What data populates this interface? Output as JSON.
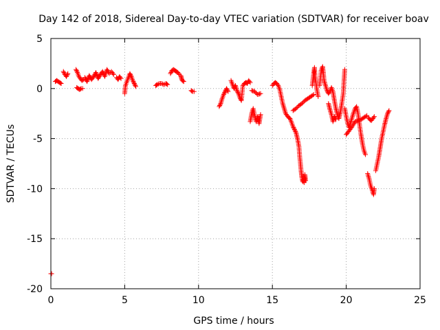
{
  "chart_data": {
    "type": "scatter",
    "title": "Day 142 of 2018, Sidereal Day-to-day VTEC variation (SDTVAR) for receiver boav",
    "xlabel": "GPS time / hours",
    "ylabel": "SDTVAR / TECUs",
    "xlim": [
      0,
      25
    ],
    "ylim": [
      -20,
      5
    ],
    "x_ticks": [
      0,
      5,
      10,
      15,
      20,
      25
    ],
    "y_ticks": [
      -20,
      -15,
      -10,
      -5,
      0,
      5
    ],
    "grid": true,
    "marker": "+",
    "color": "#ff0000",
    "series": [
      {
        "name": "SDTVAR",
        "segments": [
          [
            [
              0.0,
              -18.5
            ],
            [
              0.05,
              -18.5
            ]
          ],
          [
            [
              0.3,
              0.7
            ],
            [
              0.4,
              0.8
            ],
            [
              0.5,
              0.7
            ],
            [
              0.6,
              0.6
            ],
            [
              0.7,
              0.5
            ]
          ],
          [
            [
              0.85,
              1.7
            ],
            [
              0.95,
              1.4
            ],
            [
              1.05,
              1.2
            ],
            [
              1.15,
              1.5
            ]
          ],
          [
            [
              1.7,
              1.9
            ],
            [
              1.8,
              1.6
            ],
            [
              1.9,
              1.2
            ],
            [
              2.0,
              1.0
            ],
            [
              2.1,
              0.8
            ],
            [
              2.2,
              0.9
            ]
          ],
          [
            [
              1.75,
              0.1
            ],
            [
              1.85,
              0.0
            ],
            [
              1.95,
              -0.1
            ],
            [
              2.05,
              0.0
            ],
            [
              2.15,
              0.0
            ]
          ],
          [
            [
              2.3,
              1.1
            ],
            [
              2.45,
              0.7
            ],
            [
              2.6,
              1.3
            ],
            [
              2.75,
              0.9
            ],
            [
              2.9,
              1.2
            ],
            [
              3.05,
              1.6
            ],
            [
              3.2,
              1.0
            ],
            [
              3.35,
              1.4
            ],
            [
              3.5,
              1.7
            ],
            [
              3.65,
              1.2
            ],
            [
              3.8,
              1.9
            ],
            [
              3.95,
              1.5
            ],
            [
              4.1,
              1.7
            ],
            [
              4.25,
              1.4
            ]
          ],
          [
            [
              4.45,
              1.1
            ],
            [
              4.55,
              0.9
            ],
            [
              4.65,
              1.2
            ],
            [
              4.75,
              1.0
            ]
          ],
          [
            [
              5.0,
              -0.5
            ],
            [
              5.05,
              0.3
            ],
            [
              5.15,
              0.7
            ],
            [
              5.25,
              1.1
            ],
            [
              5.35,
              1.5
            ],
            [
              5.45,
              1.2
            ],
            [
              5.55,
              0.8
            ],
            [
              5.65,
              0.5
            ],
            [
              5.75,
              0.2
            ]
          ],
          [
            [
              7.1,
              0.3
            ],
            [
              7.2,
              0.4
            ],
            [
              7.35,
              0.5
            ],
            [
              7.5,
              0.5
            ],
            [
              7.65,
              0.4
            ],
            [
              7.8,
              0.5
            ],
            [
              7.9,
              0.4
            ]
          ],
          [
            [
              8.1,
              1.5
            ],
            [
              8.2,
              1.8
            ],
            [
              8.3,
              1.9
            ],
            [
              8.4,
              1.8
            ],
            [
              8.5,
              1.7
            ],
            [
              8.6,
              1.6
            ],
            [
              8.7,
              1.4
            ]
          ],
          [
            [
              8.8,
              1.3
            ],
            [
              8.85,
              1.0
            ],
            [
              8.9,
              0.8
            ],
            [
              9.0,
              0.7
            ]
          ],
          [
            [
              9.5,
              -0.2
            ],
            [
              9.6,
              -0.3
            ],
            [
              9.7,
              -0.3
            ]
          ],
          [
            [
              11.4,
              -1.8
            ],
            [
              11.5,
              -1.5
            ],
            [
              11.6,
              -1.0
            ],
            [
              11.7,
              -0.6
            ],
            [
              11.8,
              -0.3
            ],
            [
              11.9,
              0.0
            ],
            [
              12.0,
              -0.3
            ]
          ],
          [
            [
              12.2,
              0.8
            ],
            [
              12.3,
              0.4
            ],
            [
              12.4,
              0.0
            ],
            [
              12.5,
              0.3
            ],
            [
              12.6,
              -0.2
            ],
            [
              12.7,
              -0.5
            ],
            [
              12.8,
              -0.9
            ],
            [
              12.9,
              -1.2
            ],
            [
              13.0,
              0.3
            ],
            [
              13.1,
              0.5
            ],
            [
              13.2,
              0.6
            ],
            [
              13.3,
              0.5
            ],
            [
              13.4,
              0.8
            ],
            [
              13.5,
              0.6
            ]
          ],
          [
            [
              13.5,
              -3.3
            ],
            [
              13.6,
              -2.5
            ],
            [
              13.7,
              -2.0
            ],
            [
              13.8,
              -2.7
            ],
            [
              13.9,
              -3.3
            ],
            [
              14.0,
              -2.8
            ],
            [
              14.1,
              -3.5
            ],
            [
              14.2,
              -2.6
            ]
          ],
          [
            [
              13.6,
              -0.2
            ],
            [
              13.8,
              -0.3
            ],
            [
              14.0,
              -0.6
            ],
            [
              14.2,
              -0.5
            ]
          ],
          [
            [
              15.0,
              0.3
            ],
            [
              15.1,
              0.5
            ],
            [
              15.2,
              0.6
            ],
            [
              15.3,
              0.5
            ],
            [
              15.4,
              0.3
            ],
            [
              15.5,
              -0.1
            ],
            [
              15.6,
              -0.8
            ],
            [
              15.7,
              -1.5
            ],
            [
              15.8,
              -2.0
            ],
            [
              15.9,
              -2.5
            ],
            [
              16.0,
              -2.7
            ],
            [
              16.1,
              -2.9
            ],
            [
              16.2,
              -3.0
            ],
            [
              16.3,
              -3.4
            ],
            [
              16.4,
              -3.8
            ],
            [
              16.5,
              -4.1
            ],
            [
              16.6,
              -4.4
            ],
            [
              16.7,
              -5.0
            ],
            [
              16.8,
              -5.8
            ],
            [
              16.85,
              -6.8
            ],
            [
              16.9,
              -7.5
            ],
            [
              16.95,
              -8.3
            ],
            [
              17.0,
              -8.9
            ],
            [
              17.05,
              -9.3
            ],
            [
              17.1,
              -9.1
            ],
            [
              17.15,
              -9.4
            ],
            [
              17.2,
              -8.6
            ],
            [
              17.25,
              -9.2
            ]
          ],
          [
            [
              16.4,
              -2.2
            ],
            [
              16.6,
              -2.0
            ],
            [
              16.8,
              -1.7
            ],
            [
              17.0,
              -1.5
            ],
            [
              17.2,
              -1.2
            ],
            [
              17.4,
              -1.0
            ],
            [
              17.6,
              -0.8
            ],
            [
              17.8,
              -0.6
            ]
          ],
          [
            [
              17.7,
              0.3
            ],
            [
              17.8,
              1.6
            ],
            [
              17.85,
              2.1
            ],
            [
              17.9,
              1.1
            ],
            [
              18.0,
              0.0
            ],
            [
              18.1,
              -0.8
            ]
          ],
          [
            [
              18.2,
              0.3
            ],
            [
              18.3,
              1.8
            ],
            [
              18.4,
              2.2
            ],
            [
              18.45,
              1.6
            ],
            [
              18.5,
              0.8
            ],
            [
              18.6,
              0.3
            ],
            [
              18.7,
              -0.2
            ],
            [
              18.8,
              -0.5
            ],
            [
              18.9,
              -0.3
            ],
            [
              19.0,
              0.1
            ],
            [
              19.1,
              -0.3
            ],
            [
              19.2,
              -1.2
            ],
            [
              19.3,
              -2.0
            ],
            [
              19.4,
              -2.6
            ],
            [
              19.5,
              -3.0
            ],
            [
              19.6,
              -2.4
            ],
            [
              19.7,
              -1.5
            ],
            [
              19.8,
              -0.5
            ],
            [
              19.85,
              0.8
            ],
            [
              19.9,
              1.9
            ]
          ],
          [
            [
              18.8,
              -1.5
            ],
            [
              18.9,
              -2.1
            ],
            [
              19.0,
              -2.6
            ],
            [
              19.1,
              -3.3
            ],
            [
              19.2,
              -2.8
            ],
            [
              19.3,
              -3.1
            ]
          ],
          [
            [
              19.9,
              -2.0
            ],
            [
              20.0,
              -2.8
            ],
            [
              20.1,
              -3.5
            ],
            [
              20.2,
              -3.9
            ],
            [
              20.3,
              -3.4
            ],
            [
              20.4,
              -2.9
            ],
            [
              20.5,
              -2.4
            ],
            [
              20.6,
              -2.0
            ],
            [
              20.7,
              -1.8
            ],
            [
              20.8,
              -2.5
            ],
            [
              20.9,
              -3.6
            ],
            [
              21.0,
              -4.6
            ],
            [
              21.1,
              -5.5
            ],
            [
              21.2,
              -6.2
            ],
            [
              21.3,
              -6.6
            ]
          ],
          [
            [
              20.0,
              -4.6
            ],
            [
              20.2,
              -4.2
            ],
            [
              20.4,
              -3.8
            ],
            [
              20.6,
              -3.3
            ],
            [
              20.8,
              -3.2
            ],
            [
              21.0,
              -3.1
            ],
            [
              21.2,
              -2.9
            ],
            [
              21.4,
              -2.7
            ]
          ],
          [
            [
              21.5,
              -2.9
            ],
            [
              21.6,
              -3.1
            ],
            [
              21.7,
              -3.2
            ],
            [
              21.8,
              -3.0
            ],
            [
              21.9,
              -2.8
            ]
          ],
          [
            [
              21.45,
              -8.5
            ],
            [
              21.55,
              -9.0
            ],
            [
              21.65,
              -9.7
            ],
            [
              21.75,
              -10.1
            ],
            [
              21.85,
              -10.6
            ],
            [
              21.9,
              -10.0
            ]
          ],
          [
            [
              22.0,
              -8.2
            ],
            [
              22.1,
              -7.5
            ],
            [
              22.2,
              -6.8
            ],
            [
              22.3,
              -5.9
            ],
            [
              22.4,
              -5.0
            ],
            [
              22.5,
              -4.3
            ],
            [
              22.6,
              -3.6
            ],
            [
              22.7,
              -3.0
            ],
            [
              22.8,
              -2.5
            ],
            [
              22.9,
              -2.2
            ]
          ]
        ]
      }
    ]
  }
}
